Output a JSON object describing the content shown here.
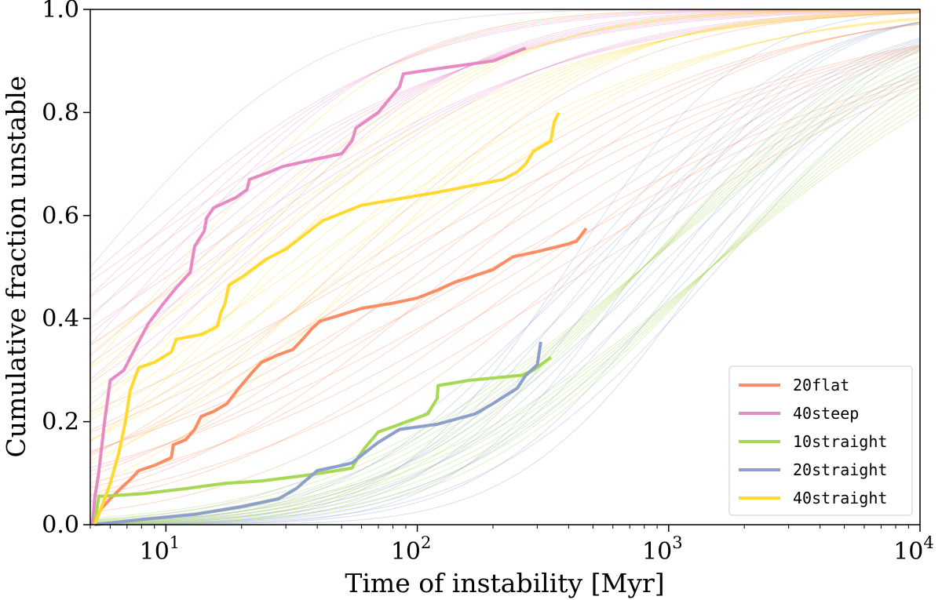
{
  "chart_data": {
    "type": "line",
    "xlabel": "Time of instability [Myr]",
    "ylabel": "Cumulative fraction unstable",
    "xscale": "log",
    "xlim": [
      5,
      10000
    ],
    "ylim": [
      0,
      1.0
    ],
    "x_ticks": [
      {
        "value": 10,
        "base": "10",
        "exp": "1"
      },
      {
        "value": 100,
        "base": "10",
        "exp": "2"
      },
      {
        "value": 1000,
        "base": "10",
        "exp": "3"
      },
      {
        "value": 10000,
        "base": "10",
        "exp": "4"
      }
    ],
    "y_ticks": [
      "0.0",
      "0.2",
      "0.4",
      "0.6",
      "0.8",
      "1.0"
    ],
    "grid": false,
    "legend_position": "lower-right",
    "series": [
      {
        "name": "20flat",
        "color": "#fc8d62",
        "points": [
          [
            5.2,
            0.0
          ],
          [
            5.5,
            0.03
          ],
          [
            6.0,
            0.05
          ],
          [
            6.6,
            0.07
          ],
          [
            7.3,
            0.09
          ],
          [
            7.8,
            0.105
          ],
          [
            9.0,
            0.115
          ],
          [
            10.5,
            0.13
          ],
          [
            10.7,
            0.155
          ],
          [
            12.0,
            0.165
          ],
          [
            13.0,
            0.185
          ],
          [
            13.8,
            0.21
          ],
          [
            15.5,
            0.22
          ],
          [
            17.5,
            0.235
          ],
          [
            19.5,
            0.265
          ],
          [
            22.0,
            0.295
          ],
          [
            24.0,
            0.315
          ],
          [
            28.0,
            0.33
          ],
          [
            32.0,
            0.34
          ],
          [
            35.0,
            0.36
          ],
          [
            38.0,
            0.38
          ],
          [
            41.0,
            0.395
          ],
          [
            48.0,
            0.405
          ],
          [
            60.0,
            0.42
          ],
          [
            80.0,
            0.43
          ],
          [
            100.0,
            0.44
          ],
          [
            120.0,
            0.455
          ],
          [
            140.0,
            0.47
          ],
          [
            200.0,
            0.495
          ],
          [
            240.0,
            0.52
          ],
          [
            300.0,
            0.53
          ],
          [
            400.0,
            0.545
          ],
          [
            430.0,
            0.55
          ],
          [
            470.0,
            0.575
          ]
        ]
      },
      {
        "name": "40steep",
        "color": "#e78ac3",
        "points": [
          [
            5.1,
            0.0
          ],
          [
            5.2,
            0.05
          ],
          [
            5.4,
            0.1
          ],
          [
            5.7,
            0.2
          ],
          [
            6.0,
            0.28
          ],
          [
            6.8,
            0.3
          ],
          [
            7.5,
            0.34
          ],
          [
            8.5,
            0.39
          ],
          [
            9.8,
            0.43
          ],
          [
            11.0,
            0.46
          ],
          [
            12.5,
            0.49
          ],
          [
            13.0,
            0.54
          ],
          [
            14.2,
            0.57
          ],
          [
            14.5,
            0.595
          ],
          [
            15.5,
            0.615
          ],
          [
            19.0,
            0.635
          ],
          [
            21.0,
            0.65
          ],
          [
            21.5,
            0.67
          ],
          [
            26.0,
            0.685
          ],
          [
            29.0,
            0.695
          ],
          [
            40.0,
            0.71
          ],
          [
            50.0,
            0.72
          ],
          [
            55.0,
            0.745
          ],
          [
            57.0,
            0.77
          ],
          [
            70.0,
            0.8
          ],
          [
            85.0,
            0.85
          ],
          [
            88.0,
            0.875
          ],
          [
            120.0,
            0.885
          ],
          [
            200.0,
            0.9
          ],
          [
            270.0,
            0.925
          ]
        ]
      },
      {
        "name": "10straight",
        "color": "#a6d854",
        "points": [
          [
            5.2,
            0.0
          ],
          [
            5.4,
            0.055
          ],
          [
            8.0,
            0.06
          ],
          [
            12.0,
            0.07
          ],
          [
            17.0,
            0.08
          ],
          [
            24.0,
            0.085
          ],
          [
            35.0,
            0.095
          ],
          [
            48.0,
            0.105
          ],
          [
            55.0,
            0.11
          ],
          [
            58.0,
            0.13
          ],
          [
            62.0,
            0.15
          ],
          [
            70.0,
            0.18
          ],
          [
            80.0,
            0.19
          ],
          [
            110.0,
            0.215
          ],
          [
            120.0,
            0.245
          ],
          [
            121.0,
            0.27
          ],
          [
            160.0,
            0.28
          ],
          [
            260.0,
            0.29
          ],
          [
            290.0,
            0.3
          ],
          [
            340.0,
            0.325
          ]
        ]
      },
      {
        "name": "20straight",
        "color": "#8da0cb",
        "points": [
          [
            5.2,
            0.0
          ],
          [
            8.0,
            0.01
          ],
          [
            13.0,
            0.02
          ],
          [
            20.0,
            0.035
          ],
          [
            28.0,
            0.05
          ],
          [
            33.0,
            0.07
          ],
          [
            40.0,
            0.105
          ],
          [
            50.0,
            0.115
          ],
          [
            55.0,
            0.12
          ],
          [
            62.0,
            0.14
          ],
          [
            70.0,
            0.16
          ],
          [
            85.0,
            0.185
          ],
          [
            120.0,
            0.195
          ],
          [
            170.0,
            0.215
          ],
          [
            200.0,
            0.235
          ],
          [
            250.0,
            0.265
          ],
          [
            270.0,
            0.29
          ],
          [
            300.0,
            0.31
          ],
          [
            310.0,
            0.355
          ]
        ]
      },
      {
        "name": "40straight",
        "color": "#ffd92f",
        "points": [
          [
            5.2,
            0.0
          ],
          [
            5.6,
            0.04
          ],
          [
            6.0,
            0.08
          ],
          [
            6.5,
            0.14
          ],
          [
            6.9,
            0.2
          ],
          [
            7.2,
            0.26
          ],
          [
            7.8,
            0.305
          ],
          [
            9.0,
            0.315
          ],
          [
            10.5,
            0.335
          ],
          [
            11.0,
            0.36
          ],
          [
            14.0,
            0.37
          ],
          [
            16.0,
            0.385
          ],
          [
            16.5,
            0.41
          ],
          [
            17.2,
            0.43
          ],
          [
            17.8,
            0.465
          ],
          [
            20.0,
            0.48
          ],
          [
            22.0,
            0.495
          ],
          [
            25.0,
            0.515
          ],
          [
            30.0,
            0.535
          ],
          [
            35.0,
            0.56
          ],
          [
            42.0,
            0.59
          ],
          [
            60.0,
            0.62
          ],
          [
            120.0,
            0.645
          ],
          [
            220.0,
            0.67
          ],
          [
            250.0,
            0.685
          ],
          [
            270.0,
            0.7
          ],
          [
            290.0,
            0.725
          ],
          [
            340.0,
            0.745
          ],
          [
            350.0,
            0.78
          ],
          [
            365.0,
            0.8
          ]
        ]
      }
    ]
  }
}
